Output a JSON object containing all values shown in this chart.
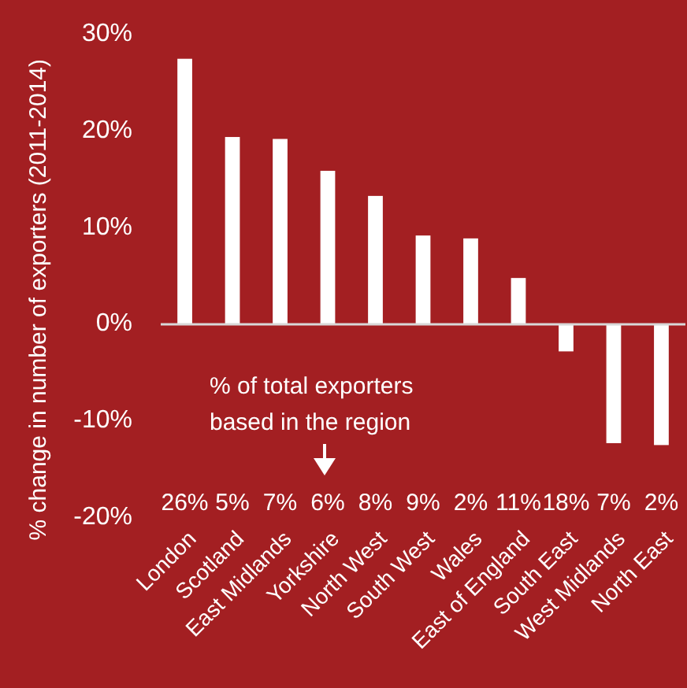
{
  "chart_data": {
    "type": "bar",
    "ylabel": "% change in number of exporters (2011-2014)",
    "categories": [
      "London",
      "Scotland",
      "East Midlands",
      "Yorkshire",
      "North West",
      "South West",
      "Wales",
      "East of England",
      "South East",
      "West Midlands",
      "North East"
    ],
    "values": [
      27.5,
      19.4,
      19.2,
      15.9,
      13.3,
      9.2,
      8.9,
      4.8,
      -2.8,
      -12.3,
      -12.5
    ],
    "color": "#ffffff",
    "ylim": [
      -20,
      30
    ],
    "yticks": [
      {
        "value": -20,
        "label": "-20%"
      },
      {
        "value": -10,
        "label": "-10%"
      },
      {
        "value": 0,
        "label": "0%"
      },
      {
        "value": 10,
        "label": "10%"
      },
      {
        "value": 20,
        "label": "20%"
      },
      {
        "value": 30,
        "label": "30%"
      }
    ],
    "annotations": [
      "% of total exporters based in the region",
      "26%",
      "5%",
      "7%",
      "6%",
      "8%",
      "9%",
      "2%",
      "11%",
      "18%",
      "7%",
      "2%"
    ]
  }
}
